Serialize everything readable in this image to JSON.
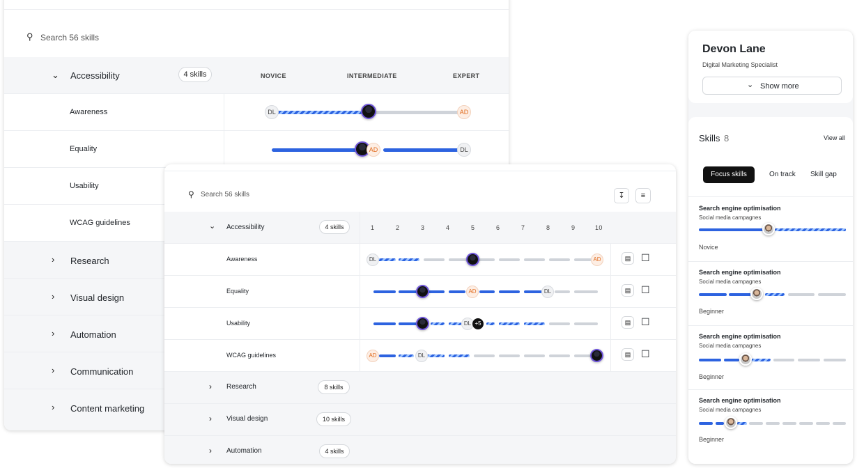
{
  "colors": {
    "blue": "#2d63e0",
    "orange": "#e06a1d",
    "gray_bar": "#cfd3d9",
    "row_bg": "#f5f6f8"
  },
  "back": {
    "search_placeholder": "Search 56 skills",
    "group": {
      "name": "Accessibility",
      "count": "4 skills"
    },
    "levels": [
      "NOVICE",
      "INTERMEDIATE",
      "EXPERT"
    ],
    "skills": [
      "Awareness",
      "Equality",
      "Usability",
      "WCAG guidelines"
    ],
    "categories": [
      "Research",
      "Visual design",
      "Automation",
      "Communication",
      "Content marketing"
    ],
    "badges": {
      "dl": "DL",
      "ad": "AD"
    }
  },
  "front": {
    "search_placeholder": "Search 56 skills",
    "group": {
      "name": "Accessibility",
      "count": "4 skills"
    },
    "scale": [
      "1",
      "2",
      "3",
      "4",
      "5",
      "6",
      "7",
      "8",
      "9",
      "10"
    ],
    "skills": [
      "Awareness",
      "Equality",
      "Usability",
      "WCAG guidelines"
    ],
    "categories": [
      {
        "name": "Research",
        "count": "8 skills"
      },
      {
        "name": "Visual design",
        "count": "10 skills"
      },
      {
        "name": "Automation",
        "count": "4 skills"
      }
    ],
    "badges": {
      "dl": "DL",
      "ad": "AD",
      "plus": "+5"
    }
  },
  "profile": {
    "name": "Devon Lane",
    "role": "Digital Marketing Specialist",
    "show_more": "Show more",
    "skills_label": "Skills",
    "skills_count": "8",
    "view_all": "View all",
    "tabs": [
      "Focus skills",
      "On track",
      "Skill gap"
    ],
    "items": [
      {
        "title": "Search engine optimisation",
        "sub": "Social media campagnes",
        "level": "Novice"
      },
      {
        "title": "Search engine optimisation",
        "sub": "Social media campagnes",
        "level": "Beginner"
      },
      {
        "title": "Search engine optimisation",
        "sub": "Social media campagnes",
        "level": "Beginner"
      },
      {
        "title": "Search engine optimisation",
        "sub": "Social media campagnes",
        "level": "Beginner"
      }
    ]
  }
}
